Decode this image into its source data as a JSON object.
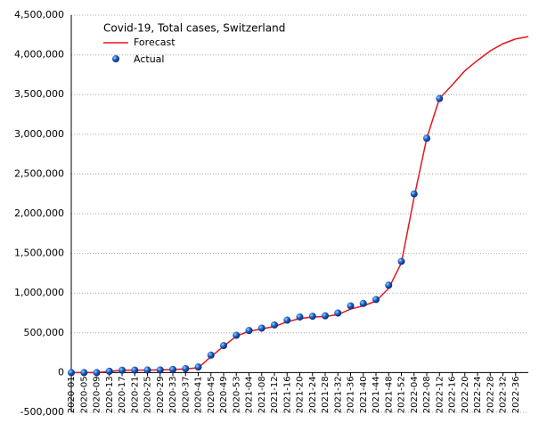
{
  "chart_data": {
    "type": "line",
    "title": "Covid-19, Total cases, Switzerland",
    "categories": [
      "2020-01",
      "2020-05",
      "2020-09",
      "2020-13",
      "2020-17",
      "2020-21",
      "2020-25",
      "2020-29",
      "2020-33",
      "2020-37",
      "2020-41",
      "2020-45",
      "2020-49",
      "2020-53",
      "2021-04",
      "2021-08",
      "2021-12",
      "2021-16",
      "2021-20",
      "2021-24",
      "2021-28",
      "2021-32",
      "2021-36",
      "2021-40",
      "2021-44",
      "2021-48",
      "2021-52",
      "2022-04",
      "2022-08",
      "2022-12",
      "2022-16",
      "2022-20",
      "2022-24",
      "2022-28",
      "2022-32",
      "2022-36",
      null
    ],
    "series": [
      {
        "name": "Forecast",
        "color": "#e8141c",
        "values": [
          0,
          0,
          0,
          15000,
          29000,
          30700,
          31300,
          33500,
          38000,
          46000,
          60000,
          200000,
          330000,
          460000,
          520000,
          550000,
          580000,
          640000,
          680000,
          700000,
          705000,
          730000,
          800000,
          840000,
          900000,
          1060000,
          1380000,
          2200000,
          2950000,
          3450000,
          3620000,
          3800000,
          3930000,
          4050000,
          4140000,
          4200000,
          4230000
        ]
      },
      {
        "name": "Actual",
        "color": "#1a5fc8",
        "values": [
          0,
          0,
          0,
          17000,
          30000,
          31000,
          32000,
          34000,
          40000,
          50000,
          70000,
          220000,
          340000,
          470000,
          530000,
          560000,
          600000,
          660000,
          700000,
          710000,
          715000,
          750000,
          840000,
          870000,
          920000,
          1100000,
          1400000,
          2250000,
          2950000,
          3450000,
          null,
          null,
          null,
          null,
          null,
          null,
          null
        ]
      }
    ],
    "ylim": [
      -500000,
      4500000
    ],
    "yticks": [
      {
        "value": -500000,
        "label": "-500,000"
      },
      0,
      {
        "value": 500000,
        "label": "500,000"
      },
      {
        "value": 1000000,
        "label": "1,000,000"
      },
      {
        "value": 1500000,
        "label": "1,500,000"
      },
      {
        "value": 2000000,
        "label": "2,000,000"
      },
      {
        "value": 2500000,
        "label": "2,500,000"
      },
      {
        "value": 3000000,
        "label": "3,000,000"
      },
      {
        "value": 3500000,
        "label": "3,500,000"
      },
      {
        "value": 4000000,
        "label": "4,000,000"
      },
      {
        "value": 4500000,
        "label": "4,500,000"
      }
    ],
    "grid": true
  }
}
